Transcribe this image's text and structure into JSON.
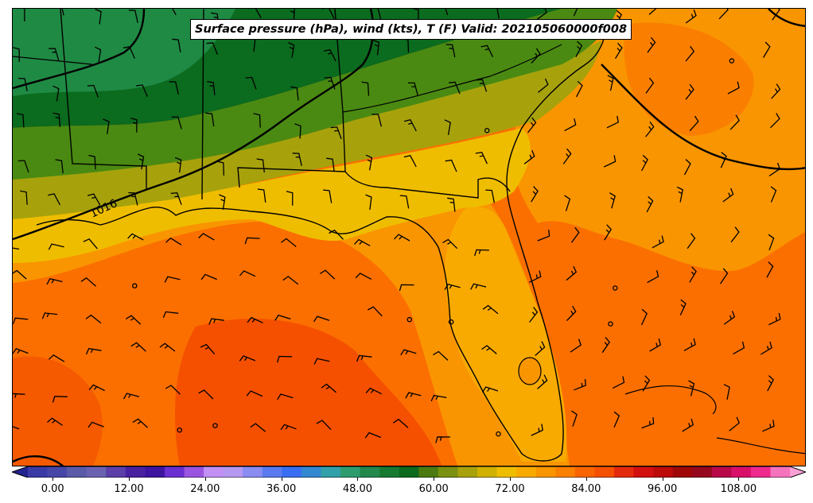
{
  "title": "Surface pressure (hPa), wind (kts), T (F) Valid: 202105060000f008",
  "isobar_label": "1016",
  "colorbar": {
    "min": -6,
    "max": 120,
    "step": 3,
    "extend": "both",
    "ticks": [
      "0.00",
      "12.00",
      "24.00",
      "36.00",
      "48.00",
      "60.00",
      "72.00",
      "84.00",
      "96.00",
      "108.00"
    ],
    "tick_values": [
      0,
      12,
      24,
      36,
      48,
      60,
      72,
      84,
      96,
      108
    ],
    "colors": [
      "#23238f",
      "#3a3aa6",
      "#4646a8",
      "#5a5aa8",
      "#6a62b0",
      "#5c3fa8",
      "#4a22a0",
      "#3d14a0",
      "#6a2fcf",
      "#9a55e0",
      "#c290f5",
      "#b598f0",
      "#8a8cf2",
      "#5a7af0",
      "#3a6ef2",
      "#3388d0",
      "#31a0a8",
      "#2e9c6e",
      "#22884c",
      "#167a32",
      "#0c6a1e",
      "#4a7a10",
      "#7a9010",
      "#a7a20c",
      "#d0b000",
      "#efbd00",
      "#f8aa00",
      "#f99500",
      "#fb7f00",
      "#fa6400",
      "#f55000",
      "#e42a0c",
      "#d40f0f",
      "#bd0a0a",
      "#a00808",
      "#96081e",
      "#b8084a",
      "#d8106a",
      "#ef2a8f",
      "#f572bc",
      "#fba0d6"
    ]
  },
  "legend": {
    "temperature_colors": {
      "cold_north": "#0b6b1e",
      "mid": "#efbd00",
      "warm": "#f99500",
      "hot": "#fa6400"
    }
  }
}
